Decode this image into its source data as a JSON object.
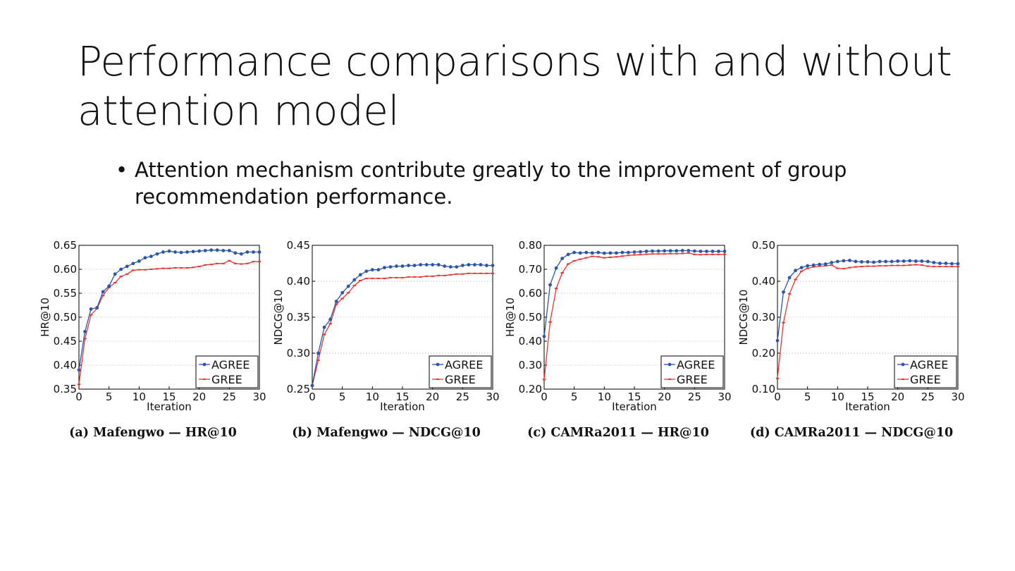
{
  "slide": {
    "title": "Performance comparisons with and without attention model",
    "bullet_marker": "•",
    "bullet": "Attention mechanism contribute greatly to the improvement of group recommendation performance."
  },
  "colors": {
    "agree": "#2c55b0",
    "gree": "#e8342f",
    "grid": "#b5b5b5"
  },
  "chart_data": [
    {
      "type": "line",
      "caption": "(a) Mafengwo — HR@10",
      "xlabel": "Iteration",
      "ylabel": "HR@10",
      "xlim": [
        0,
        30
      ],
      "ylim": [
        0.35,
        0.65
      ],
      "xticks": [
        0,
        5,
        10,
        15,
        20,
        25,
        30
      ],
      "yticks": [
        0.35,
        0.4,
        0.45,
        0.5,
        0.55,
        0.6,
        0.65
      ],
      "ytick_labels": [
        "0.35",
        "0.40",
        "0.45",
        "0.50",
        "0.55",
        "0.60",
        "0.65"
      ],
      "legend": "bottom-right",
      "series": [
        {
          "name": "AGREE",
          "values": [
            0.39,
            0.47,
            0.517,
            0.52,
            0.553,
            0.565,
            0.59,
            0.6,
            0.606,
            0.612,
            0.617,
            0.624,
            0.627,
            0.632,
            0.636,
            0.638,
            0.636,
            0.635,
            0.636,
            0.637,
            0.638,
            0.639,
            0.64,
            0.64,
            0.639,
            0.639,
            0.634,
            0.632,
            0.636,
            0.636,
            0.636
          ]
        },
        {
          "name": "GREE",
          "values": [
            0.36,
            0.455,
            0.505,
            0.518,
            0.545,
            0.562,
            0.572,
            0.585,
            0.59,
            0.598,
            0.599,
            0.599,
            0.6,
            0.601,
            0.602,
            0.602,
            0.603,
            0.603,
            0.603,
            0.604,
            0.606,
            0.609,
            0.61,
            0.612,
            0.612,
            0.618,
            0.612,
            0.611,
            0.612,
            0.616,
            0.616
          ]
        }
      ]
    },
    {
      "type": "line",
      "caption": "(b) Mafengwo — NDCG@10",
      "xlabel": "Iteration",
      "ylabel": "NDCG@10",
      "xlim": [
        0,
        30
      ],
      "ylim": [
        0.25,
        0.45
      ],
      "xticks": [
        0,
        5,
        10,
        15,
        20,
        25,
        30
      ],
      "yticks": [
        0.25,
        0.3,
        0.35,
        0.4,
        0.45
      ],
      "ytick_labels": [
        "0.25",
        "0.30",
        "0.35",
        "0.40",
        "0.45"
      ],
      "legend": "bottom-right",
      "series": [
        {
          "name": "AGREE",
          "values": [
            0.255,
            0.3,
            0.336,
            0.347,
            0.372,
            0.384,
            0.393,
            0.402,
            0.409,
            0.414,
            0.416,
            0.416,
            0.419,
            0.42,
            0.421,
            0.421,
            0.422,
            0.422,
            0.423,
            0.423,
            0.423,
            0.423,
            0.421,
            0.42,
            0.42,
            0.422,
            0.423,
            0.423,
            0.423,
            0.422,
            0.422
          ]
        },
        {
          "name": "GREE",
          "values": [
            0.255,
            0.29,
            0.326,
            0.341,
            0.368,
            0.376,
            0.384,
            0.394,
            0.401,
            0.404,
            0.404,
            0.404,
            0.404,
            0.405,
            0.405,
            0.405,
            0.406,
            0.406,
            0.406,
            0.407,
            0.407,
            0.408,
            0.408,
            0.409,
            0.41,
            0.41,
            0.411,
            0.411,
            0.411,
            0.411,
            0.411
          ]
        }
      ]
    },
    {
      "type": "line",
      "caption": "(c) CAMRa2011 — HR@10",
      "xlabel": "Iteration",
      "ylabel": "HR@10",
      "xlim": [
        0,
        30
      ],
      "ylim": [
        0.2,
        0.8
      ],
      "xticks": [
        0,
        5,
        10,
        15,
        20,
        25,
        30
      ],
      "yticks": [
        0.2,
        0.3,
        0.4,
        0.5,
        0.6,
        0.7,
        0.8
      ],
      "ytick_labels": [
        "0.20",
        "0.30",
        "0.40",
        "0.50",
        "0.60",
        "0.70",
        "0.80"
      ],
      "legend": "bottom-right",
      "series": [
        {
          "name": "AGREE",
          "values": [
            0.42,
            0.635,
            0.705,
            0.745,
            0.762,
            0.77,
            0.768,
            0.77,
            0.768,
            0.77,
            0.767,
            0.768,
            0.768,
            0.77,
            0.77,
            0.772,
            0.773,
            0.775,
            0.776,
            0.776,
            0.777,
            0.777,
            0.777,
            0.778,
            0.778,
            0.776,
            0.775,
            0.775,
            0.775,
            0.775,
            0.775
          ]
        },
        {
          "name": "GREE",
          "values": [
            0.24,
            0.48,
            0.62,
            0.685,
            0.722,
            0.735,
            0.742,
            0.748,
            0.754,
            0.752,
            0.748,
            0.75,
            0.752,
            0.755,
            0.758,
            0.76,
            0.761,
            0.763,
            0.764,
            0.764,
            0.764,
            0.765,
            0.765,
            0.766,
            0.768,
            0.762,
            0.761,
            0.762,
            0.762,
            0.762,
            0.762
          ]
        }
      ]
    },
    {
      "type": "line",
      "caption": "(d) CAMRa2011 — NDCG@10",
      "xlabel": "Iteration",
      "ylabel": "NDCG@10",
      "xlim": [
        0,
        30
      ],
      "ylim": [
        0.1,
        0.5
      ],
      "xticks": [
        0,
        5,
        10,
        15,
        20,
        25,
        30
      ],
      "yticks": [
        0.1,
        0.2,
        0.3,
        0.4,
        0.5
      ],
      "ytick_labels": [
        "0.10",
        "0.20",
        "0.30",
        "0.40",
        "0.50"
      ],
      "legend": "bottom-right",
      "series": [
        {
          "name": "AGREE",
          "values": [
            0.235,
            0.37,
            0.41,
            0.43,
            0.438,
            0.443,
            0.445,
            0.447,
            0.448,
            0.452,
            0.455,
            0.457,
            0.458,
            0.455,
            0.454,
            0.454,
            0.453,
            0.455,
            0.455,
            0.455,
            0.456,
            0.456,
            0.457,
            0.456,
            0.456,
            0.455,
            0.452,
            0.45,
            0.45,
            0.449,
            0.449
          ]
        },
        {
          "name": "GREE",
          "values": [
            0.13,
            0.285,
            0.365,
            0.405,
            0.428,
            0.436,
            0.44,
            0.442,
            0.443,
            0.445,
            0.436,
            0.435,
            0.438,
            0.44,
            0.441,
            0.442,
            0.442,
            0.443,
            0.443,
            0.444,
            0.444,
            0.444,
            0.445,
            0.446,
            0.445,
            0.442,
            0.441,
            0.441,
            0.441,
            0.441,
            0.441
          ]
        }
      ]
    }
  ]
}
